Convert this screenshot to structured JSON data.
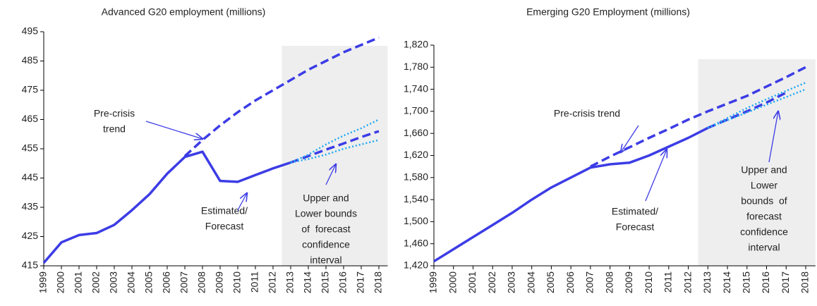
{
  "chart_data": [
    {
      "type": "line",
      "title": "Advanced G20 employment (millions)",
      "categories": [
        "1999",
        "2000",
        "2001",
        "2002",
        "2003",
        "2004",
        "2005",
        "2006",
        "2007",
        "2008",
        "2009",
        "2010",
        "2011",
        "2012",
        "2013",
        "2014",
        "2015",
        "2016",
        "2017",
        "2018"
      ],
      "ylim": [
        415,
        495
      ],
      "yticks": [
        415,
        425,
        435,
        445,
        455,
        465,
        475,
        485,
        495
      ],
      "grid": false,
      "series": [
        {
          "color": "#3c3ce6",
          "dash": "solid",
          "values": [
            416,
            423,
            425.5,
            426.2,
            429,
            434,
            439.5,
            446.5,
            452.2,
            454,
            444,
            443.7,
            446,
            448.3,
            450.3,
            null,
            null,
            null,
            null,
            null
          ]
        },
        {
          "color": "#3c3ce6",
          "dash": "dashed",
          "values": [
            null,
            null,
            null,
            null,
            null,
            null,
            null,
            null,
            null,
            null,
            null,
            null,
            null,
            null,
            450.3,
            452.5,
            454.7,
            456.8,
            459,
            461
          ]
        },
        {
          "color": "#3c3ce6",
          "dash": "dashed",
          "values": [
            null,
            null,
            null,
            null,
            null,
            null,
            null,
            null,
            452.5,
            458,
            463,
            467.5,
            471.5,
            475,
            478.5,
            482,
            485,
            488,
            490.5,
            493
          ]
        },
        {
          "color": "#1fa8f0",
          "dash": "dotted",
          "values": [
            null,
            null,
            null,
            null,
            null,
            null,
            null,
            null,
            null,
            null,
            null,
            null,
            null,
            null,
            450.3,
            453,
            456.5,
            459.5,
            462,
            465
          ]
        },
        {
          "color": "#1fa8f0",
          "dash": "dotted",
          "values": [
            null,
            null,
            null,
            null,
            null,
            null,
            null,
            null,
            null,
            null,
            null,
            null,
            null,
            null,
            450.3,
            451.5,
            453,
            455,
            456.5,
            458
          ]
        }
      ],
      "annotations": [
        [
          "Pre-crisis",
          "trend"
        ],
        [
          "Estimated/",
          "Forecast"
        ],
        [
          "Upper and",
          "Lower bounds",
          "of  forecast",
          "confidence",
          "interval"
        ]
      ]
    },
    {
      "type": "line",
      "title": "Emerging G20 Employment (millions)",
      "categories": [
        "1999",
        "2000",
        "2001",
        "2002",
        "2003",
        "2004",
        "2005",
        "2006",
        "2007",
        "2008",
        "2009",
        "2010",
        "2011",
        "2012",
        "2013",
        "2014",
        "2015",
        "2016",
        "2017",
        "2018"
      ],
      "ylim": [
        1420,
        1820
      ],
      "yticks": [
        {
          "value": 1420,
          "label": "1,420"
        },
        {
          "value": 1460,
          "label": "1,460"
        },
        {
          "value": 1500,
          "label": "1,500"
        },
        {
          "value": 1540,
          "label": "1,540"
        },
        {
          "value": 1580,
          "label": "1,580"
        },
        {
          "value": 1620,
          "label": "1,620"
        },
        {
          "value": 1660,
          "label": "1,660"
        },
        {
          "value": 1700,
          "label": "1,700"
        },
        {
          "value": 1740,
          "label": "1,740"
        },
        {
          "value": 1780,
          "label": "1,780"
        },
        {
          "value": 1820,
          "label": "1,820"
        }
      ],
      "grid": false,
      "series": [
        {
          "color": "#3c3ce6",
          "dash": "solid",
          "values": [
            1428,
            1450,
            1472,
            1494,
            1516,
            1540,
            1562,
            1580,
            1598,
            1604,
            1607,
            1620,
            1636,
            1652,
            1670,
            null,
            null,
            null,
            null,
            null
          ]
        },
        {
          "color": "#3c3ce6",
          "dash": "dashed",
          "values": [
            null,
            null,
            null,
            null,
            null,
            null,
            null,
            null,
            null,
            null,
            null,
            null,
            null,
            null,
            1670,
            1685,
            1700,
            1716,
            1734,
            null
          ]
        },
        {
          "color": "#3c3ce6",
          "dash": "dashed",
          "values": [
            null,
            null,
            null,
            null,
            null,
            null,
            null,
            null,
            1600,
            1618,
            1635,
            1652,
            1668,
            1685,
            1700,
            1714,
            1728,
            1745,
            1762,
            1780
          ]
        },
        {
          "color": "#1fa8f0",
          "dash": "dotted",
          "values": [
            null,
            null,
            null,
            null,
            null,
            null,
            null,
            null,
            null,
            null,
            null,
            null,
            null,
            null,
            1670,
            1688,
            1706,
            1722,
            1737,
            1752
          ]
        },
        {
          "color": "#1fa8f0",
          "dash": "dotted",
          "values": [
            null,
            null,
            null,
            null,
            null,
            null,
            null,
            null,
            null,
            null,
            null,
            null,
            null,
            null,
            1670,
            1684,
            1698,
            1712,
            1726,
            1740
          ]
        }
      ],
      "annotations": [
        [
          "Pre-crisis trend"
        ],
        [
          "Estimated/",
          "Forecast"
        ],
        [
          "Upper and",
          "Lower",
          "bounds  of",
          "forecast",
          "confidence",
          "interval"
        ]
      ]
    }
  ]
}
